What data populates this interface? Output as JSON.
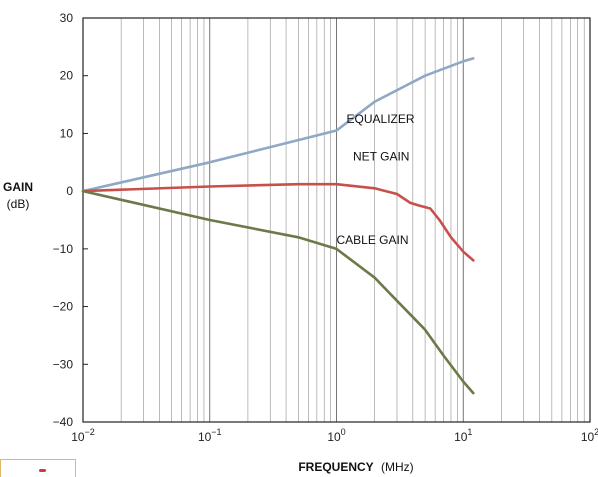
{
  "chart_data": {
    "type": "line",
    "xscale": "log",
    "xlim": [
      0.01,
      100
    ],
    "ylim": [
      -40,
      30
    ],
    "grid": true,
    "legend": "inline labels beside each curve",
    "ylabel_main": "GAIN",
    "ylabel_unit": "(dB)",
    "xlabel_main": "FREQUENCY",
    "xlabel_unit": "(MHz)",
    "yticks": [
      30,
      20,
      10,
      0,
      -10,
      -20,
      -30,
      -40
    ],
    "ytick_labels": [
      "30",
      "20",
      "10",
      "0",
      "−10",
      "−20",
      "−30",
      "−40"
    ],
    "xticks": [
      0.01,
      0.1,
      1,
      10,
      100
    ],
    "xtick_labels": [
      {
        "base": "10",
        "exp": "−2"
      },
      {
        "base": "10",
        "exp": "−1"
      },
      {
        "base": "10",
        "exp": "0"
      },
      {
        "base": "10",
        "exp": "1"
      },
      {
        "base": "10",
        "exp": "2"
      }
    ],
    "series": [
      {
        "name": "EQUALIZER",
        "color": "#8fa8c4",
        "points": [
          [
            0.01,
            0
          ],
          [
            0.1,
            5
          ],
          [
            1,
            10.5
          ],
          [
            2,
            15.5
          ],
          [
            5,
            20
          ],
          [
            10,
            22.5
          ],
          [
            12,
            23
          ]
        ]
      },
      {
        "name": "NET GAIN",
        "color": "#c8504a",
        "points": [
          [
            0.01,
            0
          ],
          [
            0.1,
            0.8
          ],
          [
            0.5,
            1.2
          ],
          [
            1,
            1.2
          ],
          [
            2,
            0.5
          ],
          [
            3,
            -0.5
          ],
          [
            3.8,
            -2
          ],
          [
            4.5,
            -2.5
          ],
          [
            5.5,
            -3
          ],
          [
            6.5,
            -5
          ],
          [
            8,
            -8
          ],
          [
            10,
            -10.5
          ],
          [
            12,
            -12
          ]
        ]
      },
      {
        "name": "CABLE GAIN",
        "color": "#6b7a48",
        "points": [
          [
            0.01,
            0
          ],
          [
            0.1,
            -5
          ],
          [
            0.5,
            -8
          ],
          [
            1,
            -10
          ],
          [
            2,
            -15
          ],
          [
            3,
            -19
          ],
          [
            5,
            -24
          ],
          [
            7,
            -28.5
          ],
          [
            10,
            -33
          ],
          [
            12,
            -35
          ]
        ]
      }
    ],
    "labels": [
      {
        "text": "EQUALIZER",
        "series": "EQUALIZER",
        "x": 1.2,
        "y": 11.8
      },
      {
        "text": "NET GAIN",
        "series": "NET GAIN",
        "x": 1.35,
        "y": 5.3
      },
      {
        "text": "CABLE GAIN",
        "series": "CABLE GAIN",
        "x": 1.0,
        "y": -9.2
      }
    ],
    "colors": {
      "axis": "#222222",
      "grid": "#333333"
    }
  }
}
